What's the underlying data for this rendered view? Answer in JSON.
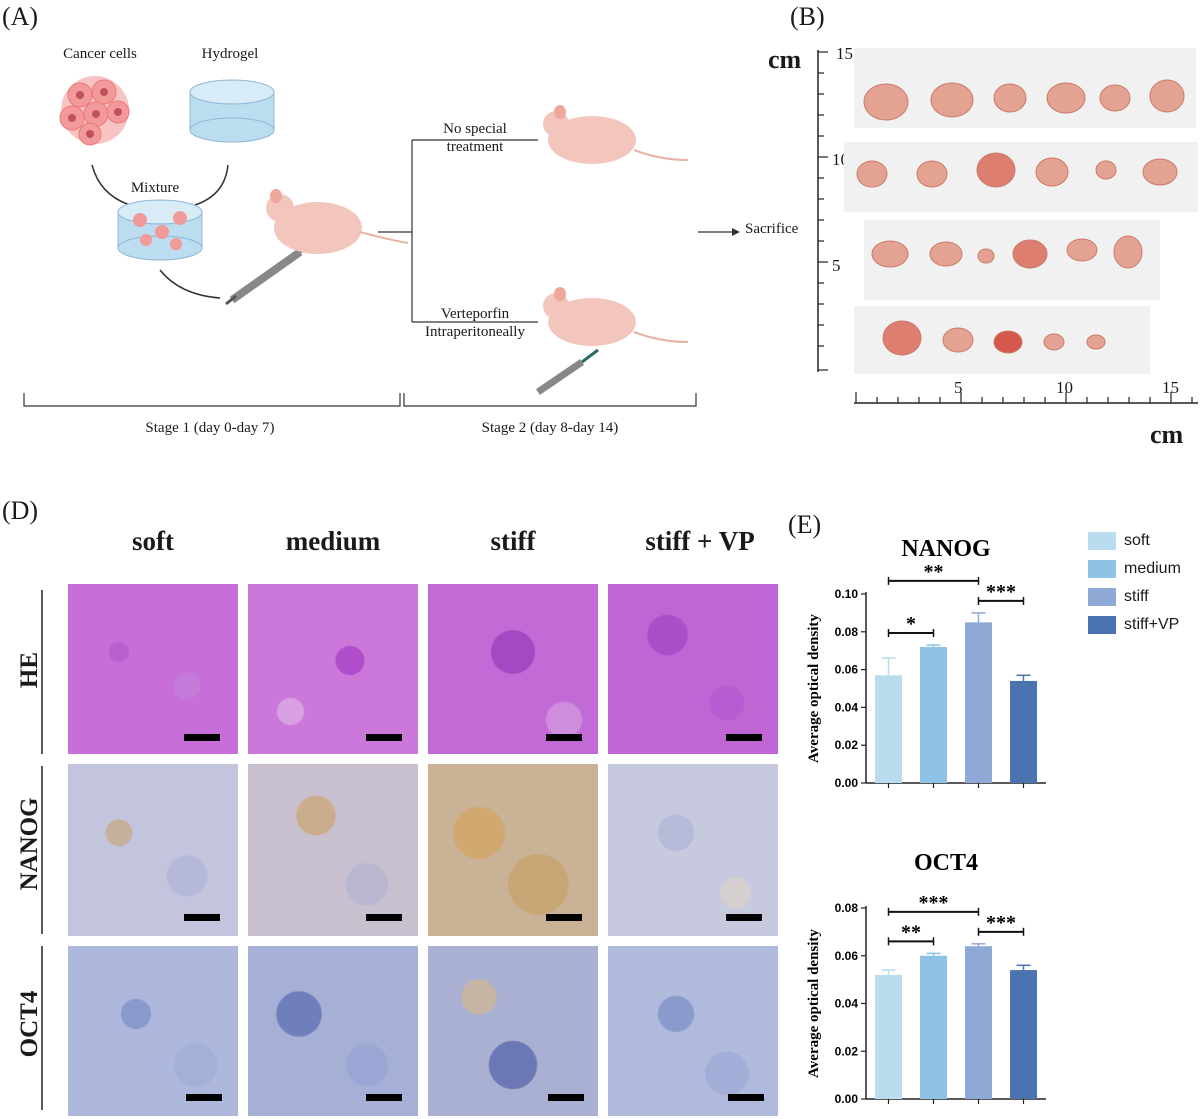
{
  "panelA": {
    "label": "(A)",
    "cancer_cells": "Cancer cells",
    "hydrogel": "Hydrogel",
    "mixture": "Mixture",
    "no_treatment_1": "No special",
    "no_treatment_2": "treatment",
    "vp_1": "Verteporfin",
    "vp_2": "Intraperitoneally",
    "sacrifice": "Sacrifice",
    "stage1": "Stage 1 (day 0-day 7)",
    "stage2": "Stage 2 (day 8-day 14)"
  },
  "panelB": {
    "label": "(B)",
    "unit": "cm",
    "vticks": [
      "15",
      "10",
      "5"
    ],
    "hticks": [
      "5",
      "10",
      "15"
    ]
  },
  "panelD": {
    "label": "(D)",
    "columns": [
      "soft",
      "medium",
      "stiff",
      "stiff + VP"
    ],
    "rows": [
      "HE",
      "NANOG",
      "OCT4"
    ]
  },
  "panelE": {
    "label": "(E)",
    "legend": [
      "soft",
      "medium",
      "stiff",
      "stiff+VP"
    ],
    "colors": [
      "#b9dcee",
      "#8ec3e6",
      "#8fa9d6",
      "#4a73b0"
    ]
  },
  "chart_data": [
    {
      "type": "bar",
      "title": "NANOG",
      "ylabel": "Average optical density",
      "categories": [
        "soft",
        "medium",
        "stiff",
        "stiff+VP"
      ],
      "values": [
        0.057,
        0.072,
        0.085,
        0.054
      ],
      "errors": [
        0.009,
        0.001,
        0.005,
        0.003
      ],
      "ylim": [
        0,
        0.1
      ],
      "yticks": [
        "0.00",
        "0.02",
        "0.04",
        "0.06",
        "0.08",
        "0.10"
      ],
      "significance": [
        {
          "from": 0,
          "to": 1,
          "label": "*"
        },
        {
          "from": 0,
          "to": 2,
          "label": "**"
        },
        {
          "from": 2,
          "to": 3,
          "label": "***"
        }
      ]
    },
    {
      "type": "bar",
      "title": "OCT4",
      "ylabel": "Average optical density",
      "categories": [
        "soft",
        "medium",
        "stiff",
        "stiff+VP"
      ],
      "values": [
        0.052,
        0.06,
        0.064,
        0.054
      ],
      "errors": [
        0.002,
        0.001,
        0.001,
        0.002
      ],
      "ylim": [
        0,
        0.08
      ],
      "yticks": [
        "0.00",
        "0.02",
        "0.04",
        "0.06",
        "0.08"
      ],
      "significance": [
        {
          "from": 0,
          "to": 1,
          "label": "**"
        },
        {
          "from": 0,
          "to": 2,
          "label": "***"
        },
        {
          "from": 2,
          "to": 3,
          "label": "***"
        }
      ]
    }
  ]
}
